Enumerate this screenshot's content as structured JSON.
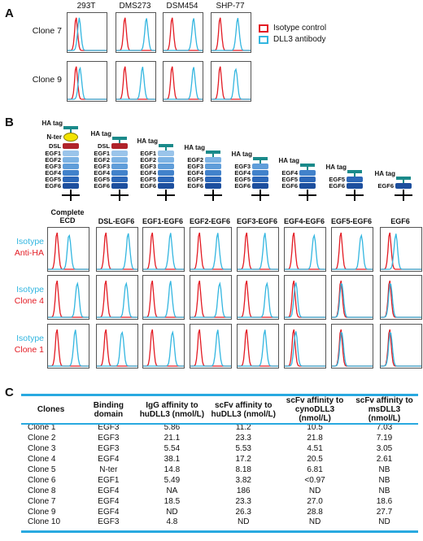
{
  "panel_a": {
    "letter": "A",
    "cell_lines": [
      "293T",
      "DMS273",
      "DSM454",
      "SHP-77"
    ],
    "rows": [
      "Clone 7",
      "Clone 9"
    ],
    "legend": [
      {
        "label": "Isotype control",
        "color": "#e31b23"
      },
      {
        "label": "DLL3 antibody",
        "color": "#33b6e0"
      }
    ],
    "shift": [
      [
        0.08,
        0.55,
        0.55,
        0.45
      ],
      [
        0.1,
        0.45,
        0.55,
        0.4
      ]
    ]
  },
  "panel_b": {
    "letter": "B",
    "constructs": [
      {
        "name": "Complete\nECD",
        "segments": [
          "EGF1",
          "EGF2",
          "EGF3",
          "EGF4",
          "EGF5",
          "EGF6"
        ],
        "dsl": true,
        "nter": true
      },
      {
        "name": "DSL-EGF6",
        "segments": [
          "EGF1",
          "EGF2",
          "EGF3",
          "EGF4",
          "EGF5",
          "EGF6"
        ],
        "dsl": true,
        "nter": false
      },
      {
        "name": "EGF1-EGF6",
        "segments": [
          "EGF1",
          "EGF2",
          "EGF3",
          "EGF4",
          "EGF5",
          "EGF6"
        ],
        "dsl": false,
        "nter": false
      },
      {
        "name": "EGF2-EGF6",
        "segments": [
          "EGF2",
          "EGF3",
          "EGF4",
          "EGF5",
          "EGF6"
        ],
        "dsl": false,
        "nter": false
      },
      {
        "name": "EGF3-EGF6",
        "segments": [
          "EGF3",
          "EGF4",
          "EGF5",
          "EGF6"
        ],
        "dsl": false,
        "nter": false
      },
      {
        "name": "EGF4-EGF6",
        "segments": [
          "EGF4",
          "EGF5",
          "EGF6"
        ],
        "dsl": false,
        "nter": false
      },
      {
        "name": "EGF5-EGF6",
        "segments": [
          "EGF5",
          "EGF6"
        ],
        "dsl": false,
        "nter": false
      },
      {
        "name": "EGF6",
        "segments": [
          "EGF6"
        ],
        "dsl": false,
        "nter": false
      }
    ],
    "tags": {
      "ha": "HA tag",
      "nter": "N-ter",
      "dsl": "DSL"
    },
    "rows": [
      {
        "top": "Isotype",
        "bottom": "Anti-HA",
        "shift": [
          0.3,
          0.55,
          0.45,
          0.45,
          0.45,
          0.5,
          0.5,
          0.15
        ]
      },
      {
        "top": "Isotype",
        "bottom": "Clone 4",
        "shift": [
          0.5,
          0.5,
          0.45,
          0.5,
          0.5,
          0.05,
          0.02,
          0.02
        ]
      },
      {
        "top": "Isotype",
        "bottom": "Clone 1",
        "shift": [
          0.45,
          0.4,
          0.5,
          0.45,
          0.45,
          0.05,
          0.02,
          0.02
        ]
      }
    ],
    "colors": {
      "isotype": "#33b6e0",
      "test": "#e31b23"
    }
  },
  "panel_c": {
    "letter": "C",
    "headers": [
      "Clones",
      "Binding domain",
      "IgG affinity to huDLL3 (nmol/L)",
      "scFv affinity to huDLL3 (nmol/L)",
      "scFv affinity to cynoDLL3 (nmol/L)",
      "scFv affinity to msDLL3 (nmol/L)"
    ],
    "rows": [
      [
        "Clone 1",
        "EGF3",
        "5.86",
        "11.2",
        "10.5",
        "7.03"
      ],
      [
        "Clone 2",
        "EGF3",
        "21.1",
        "23.3",
        "21.8",
        "7.19"
      ],
      [
        "Clone 3",
        "EGF3",
        "5.54",
        "5.53",
        "4.51",
        "3.05"
      ],
      [
        "Clone 4",
        "EGF4",
        "38.1",
        "17.2",
        "20.5",
        "2.61"
      ],
      [
        "Clone 5",
        "N-ter",
        "14.8",
        "8.18",
        "6.81",
        "NB"
      ],
      [
        "Clone 6",
        "EGF1",
        "5.49",
        "3.82",
        "<0.97",
        "NB"
      ],
      [
        "Clone 8",
        "EGF4",
        "NA",
        "186",
        "ND",
        "NB"
      ],
      [
        "Clone 7",
        "EGF4",
        "18.5",
        "23.3",
        "27.0",
        "18.6"
      ],
      [
        "Clone 9",
        "EGF4",
        "ND",
        "26.3",
        "28.8",
        "27.7"
      ],
      [
        "Clone 10",
        "EGF3",
        "4.8",
        "ND",
        "ND",
        "ND"
      ]
    ],
    "rule_color": "#29a9e0"
  },
  "colors": {
    "teal": "#1a8a8a",
    "nter": "#f2e300",
    "dsl": "#b0232a",
    "egf": [
      "#9ac4ea",
      "#7db3e4",
      "#5f9dd9",
      "#4282cb",
      "#2c67b8",
      "#1d4f9e"
    ]
  }
}
